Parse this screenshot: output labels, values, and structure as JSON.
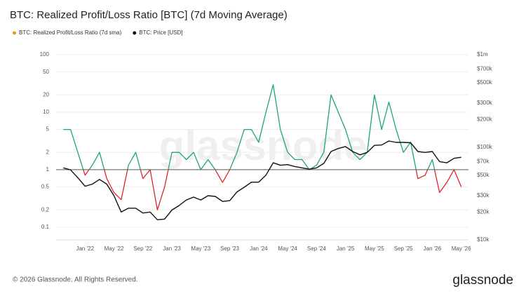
{
  "chart_data": {
    "type": "line",
    "title": "BTC: Realized Profit/Loss Ratio [BTC] (7d Moving Average)",
    "watermark": "glassnode",
    "footer": "© 2026 Glassnode. All Rights Reserved.",
    "logo": "glassnode",
    "x": [
      "2021-10",
      "2021-11",
      "2021-12",
      "2022-01",
      "2022-02",
      "2022-03",
      "2022-04",
      "2022-05",
      "2022-06",
      "2022-07",
      "2022-08",
      "2022-09",
      "2022-10",
      "2022-11",
      "2022-12",
      "2023-01",
      "2023-02",
      "2023-03",
      "2023-04",
      "2023-05",
      "2023-06",
      "2023-07",
      "2023-08",
      "2023-09",
      "2023-10",
      "2023-11",
      "2023-12",
      "2024-01",
      "2024-02",
      "2024-03",
      "2024-04",
      "2024-05",
      "2024-06",
      "2024-07",
      "2024-08",
      "2024-09",
      "2024-10",
      "2024-11",
      "2024-12",
      "2025-01",
      "2025-02",
      "2025-03",
      "2025-04",
      "2025-05",
      "2025-06",
      "2025-07",
      "2025-08",
      "2025-09",
      "2025-10",
      "2025-11",
      "2025-12",
      "2026-01",
      "2026-02",
      "2026-03",
      "2026-04",
      "2026-05"
    ],
    "series": [
      {
        "name": "BTC: Realized Profit/Loss Ratio (7d sma)",
        "color": "#f7931a",
        "above_color": "#1ba672",
        "below_color": "#e0242b",
        "values": [
          5,
          5,
          2,
          0.8,
          1.2,
          2,
          0.7,
          0.4,
          0.3,
          1.2,
          2,
          0.7,
          1,
          0.2,
          0.5,
          2,
          2,
          1.5,
          2,
          1,
          1.5,
          1,
          0.6,
          1,
          2,
          5,
          5,
          3,
          10,
          30,
          5,
          2,
          1.5,
          1.5,
          1,
          1.2,
          2,
          20,
          10,
          5,
          2,
          1.5,
          2,
          20,
          5,
          15,
          5,
          2,
          3,
          0.7,
          0.8,
          1.5,
          0.4,
          0.6,
          1,
          0.5
        ]
      },
      {
        "name": "BTC: Price [USD]",
        "color": "#111111",
        "axis": "y2",
        "values": [
          60000,
          57000,
          47000,
          38000,
          40000,
          45000,
          40000,
          30000,
          20000,
          22000,
          22000,
          19500,
          20000,
          16500,
          16800,
          21000,
          23500,
          27000,
          29000,
          27000,
          30000,
          29500,
          26000,
          26500,
          33000,
          37000,
          42000,
          42000,
          50000,
          68000,
          64000,
          65000,
          62000,
          60000,
          58000,
          60000,
          67000,
          90000,
          97000,
          102000,
          90000,
          83000,
          88000,
          105000,
          106000,
          117000,
          113000,
          113000,
          112000,
          90000,
          88000,
          90000,
          70000,
          68000,
          76000,
          78000
        ]
      }
    ],
    "xlim": [
      "2021-09",
      "2026-06"
    ],
    "xticks": [
      {
        "value": "2022-01",
        "label": "Jan '22"
      },
      {
        "value": "2022-05",
        "label": "May '22"
      },
      {
        "value": "2022-09",
        "label": "Sep '22"
      },
      {
        "value": "2023-01",
        "label": "Jan '23"
      },
      {
        "value": "2023-05",
        "label": "May '23"
      },
      {
        "value": "2023-09",
        "label": "Sep '23"
      },
      {
        "value": "2024-01",
        "label": "Jan '24"
      },
      {
        "value": "2024-05",
        "label": "May '24"
      },
      {
        "value": "2024-09",
        "label": "Sep '24"
      },
      {
        "value": "2025-01",
        "label": "Jan '25"
      },
      {
        "value": "2025-05",
        "label": "May '25"
      },
      {
        "value": "2025-09",
        "label": "Sep '25"
      },
      {
        "value": "2026-01",
        "label": "Jan '26"
      },
      {
        "value": "2026-05",
        "label": "May '26"
      }
    ],
    "ylim": [
      0.06,
      100
    ],
    "yticks": [
      0.1,
      0.2,
      0.5,
      1,
      2,
      5,
      10,
      20,
      50,
      100
    ],
    "y2lim": [
      10000,
      1000000
    ],
    "y2ticks": [
      {
        "value": 10000,
        "label": "$10k"
      },
      {
        "value": 20000,
        "label": "$20k"
      },
      {
        "value": 30000,
        "label": "$30k"
      },
      {
        "value": 50000,
        "label": "$50k"
      },
      {
        "value": 70000,
        "label": "$70k"
      },
      {
        "value": 100000,
        "label": "$100k"
      },
      {
        "value": 200000,
        "label": "$200k"
      },
      {
        "value": 300000,
        "label": "$300k"
      },
      {
        "value": 500000,
        "label": "$500k"
      },
      {
        "value": 700000,
        "label": "$700k"
      },
      {
        "value": 1000000,
        "label": "$1m"
      }
    ],
    "log_scale": true,
    "grid": true,
    "reference_line": 1
  }
}
